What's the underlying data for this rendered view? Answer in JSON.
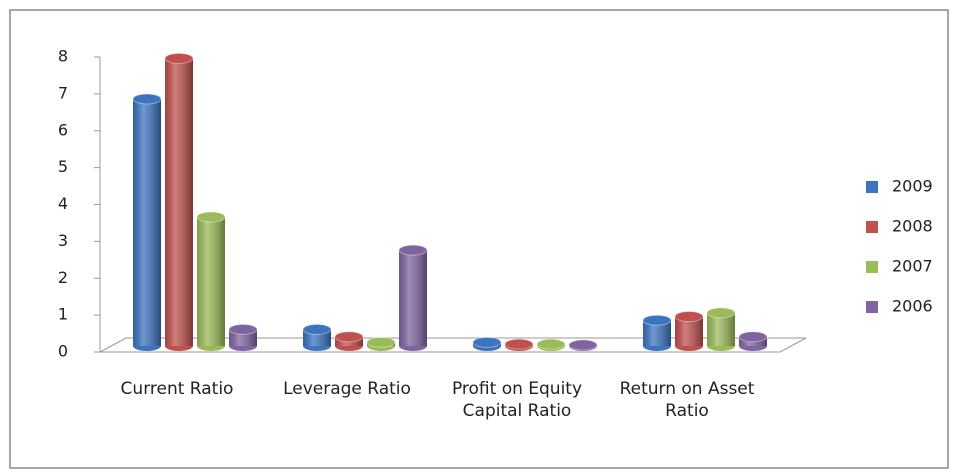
{
  "chart_data": {
    "type": "bar3d",
    "categories": [
      "Current Ratio",
      "Leverage Ratio",
      "Profit on Equity Capital Ratio",
      "Return on Asset Ratio"
    ],
    "series": [
      {
        "name": "2009",
        "color": "#3c74c0",
        "values": [
          6.7,
          0.45,
          0.1,
          0.7
        ]
      },
      {
        "name": "2008",
        "color": "#c0504d",
        "values": [
          7.8,
          0.25,
          0.05,
          0.8
        ]
      },
      {
        "name": "2007",
        "color": "#9bbb59",
        "values": [
          3.5,
          0.1,
          0.05,
          0.9
        ]
      },
      {
        "name": "2006",
        "color": "#8064a2",
        "values": [
          0.45,
          2.6,
          0.03,
          0.25
        ]
      }
    ],
    "ylim": [
      0,
      8
    ],
    "yticks": [
      0,
      1,
      2,
      3,
      4,
      5,
      6,
      7,
      8
    ],
    "legend": "right"
  }
}
